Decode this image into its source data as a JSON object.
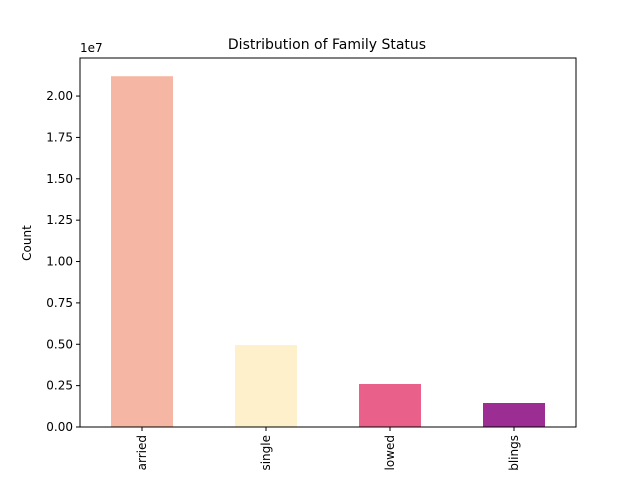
{
  "chart_data": {
    "type": "bar",
    "title": "Distribution of Family Status",
    "xlabel": "",
    "ylabel": "Count",
    "offset_label": "1e7",
    "categories": [
      "arried",
      "single",
      "lowed",
      "blings"
    ],
    "values": [
      21200000,
      4950000,
      2600000,
      1450000
    ],
    "colors": [
      "#f5b7a4",
      "#fef0cb",
      "#e9608a",
      "#9c2e93"
    ],
    "ylim": [
      0,
      22300000
    ],
    "yticks": [
      0,
      2500000,
      5000000,
      7500000,
      10000000,
      12500000,
      15000000,
      17500000,
      20000000
    ],
    "ytick_labels": [
      "0.00",
      "0.25",
      "0.50",
      "0.75",
      "1.00",
      "1.25",
      "1.50",
      "1.75",
      "2.00"
    ],
    "grid": false,
    "legend": "none"
  }
}
